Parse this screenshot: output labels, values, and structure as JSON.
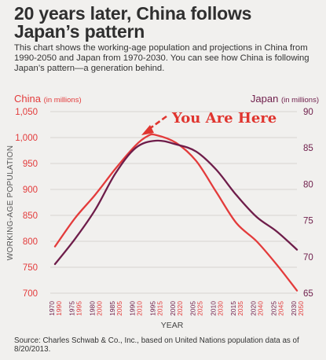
{
  "title": "20 years later, China follows Japan’s pattern",
  "description": "This chart shows the working-age population and projections in China from 1990-2050 and Japan from 1970-2030. You can see how China is following Japan’s pattern—a generation behind.",
  "source": "Source: Charles Schwab & Co., Inc., based on United Nations population data as of 8/20/2013.",
  "colors": {
    "china": "#e33b3b",
    "japan": "#6e1d4a",
    "annotation": "#e0352f",
    "background": "#f1f0ee",
    "grid": "#d6d4d0"
  },
  "chart_data": {
    "type": "line",
    "xlabel": "YEAR",
    "ylabel": "WORKING-AGE POPULATION",
    "left_axis": {
      "name": "China",
      "unit": "(in millions)",
      "ylim": [
        700,
        1050
      ],
      "ticks": [
        "700",
        "750",
        "800",
        "850",
        "900",
        "950",
        "1,000",
        "1,050"
      ]
    },
    "right_axis": {
      "name": "Japan",
      "unit": "(in millions)",
      "ylim": [
        65,
        90
      ],
      "ticks": [
        "65",
        "70",
        "75",
        "80",
        "85",
        "90"
      ]
    },
    "x_ticks_japan": [
      "1970",
      "1975",
      "1980",
      "1985",
      "1990",
      "1995",
      "2000",
      "2005",
      "2010",
      "2015",
      "2020",
      "2025",
      "2030"
    ],
    "x_ticks_china": [
      "1990",
      "1995",
      "2000",
      "2005",
      "2010",
      "2015",
      "2020",
      "2025",
      "2030",
      "2035",
      "2040",
      "2045",
      "2050"
    ],
    "series": [
      {
        "name": "China",
        "axis": "left",
        "x": [
          1990,
          1995,
          2000,
          2005,
          2010,
          2013,
          2015,
          2020,
          2025,
          2030,
          2035,
          2040,
          2045,
          2050
        ],
        "values": [
          790,
          845,
          890,
          940,
          985,
          1003,
          1005,
          990,
          955,
          895,
          835,
          800,
          755,
          705
        ]
      },
      {
        "name": "Japan",
        "axis": "right",
        "x": [
          1970,
          1975,
          1980,
          1985,
          1990,
          1995,
          2000,
          2005,
          2010,
          2015,
          2020,
          2025,
          2030
        ],
        "values": [
          69,
          72.5,
          76.5,
          81.5,
          85,
          86,
          85.5,
          84.5,
          82,
          78.5,
          75.5,
          73.5,
          71
        ]
      }
    ],
    "annotation": "You Are Here"
  }
}
